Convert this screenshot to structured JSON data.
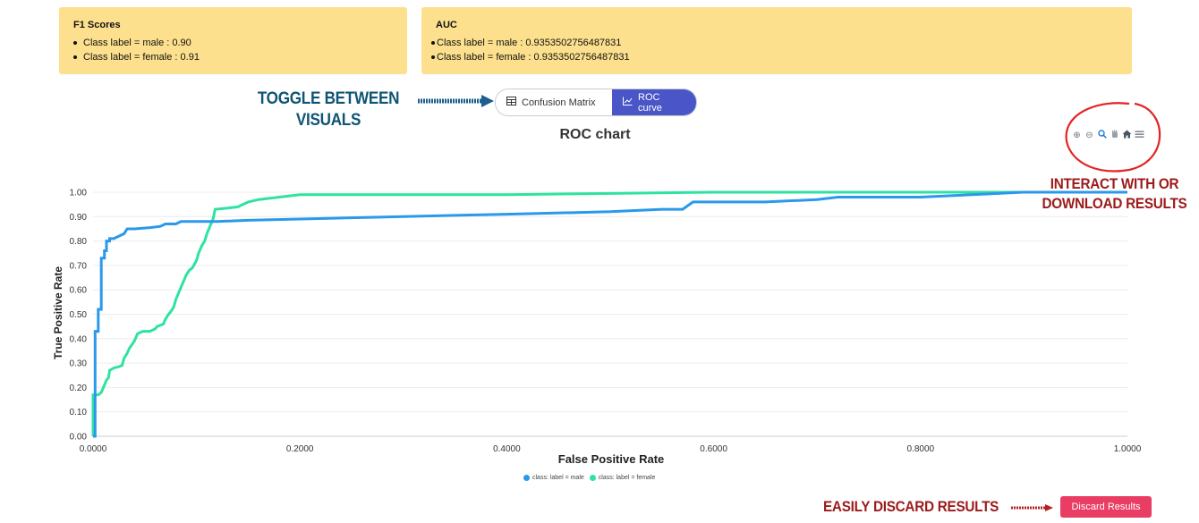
{
  "f1_card": {
    "title": "F1 Scores",
    "items": [
      "Class label = male : 0.90",
      "Class label = female : 0.91"
    ]
  },
  "auc_card": {
    "title": "AUC",
    "items": [
      "Class label = male : 0.9353502756487831",
      "Class label = female : 0.9353502756487831"
    ]
  },
  "annotations": {
    "toggle_line1": "TOGGLE BETWEEN",
    "toggle_line2": "VISUALS",
    "interact_line1": "INTERACT WITH OR",
    "interact_line2": "DOWNLOAD RESULTS",
    "discard": "EASILY DISCARD RESULTS"
  },
  "toggle": {
    "options": [
      {
        "label": "Confusion Matrix",
        "icon": "table-icon",
        "active": false
      },
      {
        "label": "ROC curve",
        "icon": "line-chart-icon",
        "active": true
      }
    ]
  },
  "toolbar": {
    "icons": [
      "zoom-in-icon",
      "zoom-out-icon",
      "magnifier-icon",
      "pan-hand-icon",
      "home-icon",
      "menu-icon"
    ]
  },
  "discard_button": "Discard Results",
  "colors": {
    "card_bg": "#fde08d",
    "male": "#2a99ea",
    "female": "#2ee3a0",
    "toggle_active": "#4a56c8",
    "discard": "#e93d64",
    "annot_red": "#9c1a1a",
    "annot_blue": "#0f5474"
  },
  "chart_data": {
    "type": "line",
    "title": "ROC chart",
    "xlabel": "False Positive Rate",
    "ylabel": "True Positive Rate",
    "xlim": [
      0,
      1
    ],
    "ylim": [
      0,
      1
    ],
    "x_ticks": [
      "0.0000",
      "0.2000",
      "0.4000",
      "0.6000",
      "0.8000",
      "1.0000"
    ],
    "y_ticks": [
      "0.00",
      "0.10",
      "0.20",
      "0.30",
      "0.40",
      "0.50",
      "0.60",
      "0.70",
      "0.80",
      "0.90",
      "1.00"
    ],
    "grid": true,
    "legend": "bottom",
    "series": [
      {
        "name": "class: label = male",
        "points": [
          [
            0,
            0
          ],
          [
            0.002,
            0
          ],
          [
            0.002,
            0.43
          ],
          [
            0.005,
            0.43
          ],
          [
            0.005,
            0.52
          ],
          [
            0.008,
            0.52
          ],
          [
            0.008,
            0.73
          ],
          [
            0.011,
            0.73
          ],
          [
            0.011,
            0.76
          ],
          [
            0.013,
            0.76
          ],
          [
            0.013,
            0.8
          ],
          [
            0.016,
            0.8
          ],
          [
            0.016,
            0.81
          ],
          [
            0.02,
            0.81
          ],
          [
            0.025,
            0.82
          ],
          [
            0.03,
            0.83
          ],
          [
            0.033,
            0.85
          ],
          [
            0.04,
            0.85
          ],
          [
            0.055,
            0.855
          ],
          [
            0.065,
            0.86
          ],
          [
            0.07,
            0.87
          ],
          [
            0.08,
            0.87
          ],
          [
            0.085,
            0.88
          ],
          [
            0.1,
            0.88
          ],
          [
            0.12,
            0.88
          ],
          [
            0.15,
            0.885
          ],
          [
            0.2,
            0.89
          ],
          [
            0.3,
            0.9
          ],
          [
            0.35,
            0.905
          ],
          [
            0.4,
            0.91
          ],
          [
            0.5,
            0.92
          ],
          [
            0.55,
            0.93
          ],
          [
            0.57,
            0.93
          ],
          [
            0.58,
            0.96
          ],
          [
            0.65,
            0.96
          ],
          [
            0.7,
            0.97
          ],
          [
            0.72,
            0.98
          ],
          [
            0.8,
            0.98
          ],
          [
            0.85,
            0.99
          ],
          [
            0.9,
            1.0
          ],
          [
            1.0,
            1.0
          ]
        ]
      },
      {
        "name": "class: label = female",
        "points": [
          [
            0,
            0
          ],
          [
            0,
            0.17
          ],
          [
            0.005,
            0.17
          ],
          [
            0.008,
            0.18
          ],
          [
            0.01,
            0.2
          ],
          [
            0.013,
            0.23
          ],
          [
            0.015,
            0.24
          ],
          [
            0.016,
            0.27
          ],
          [
            0.02,
            0.28
          ],
          [
            0.025,
            0.285
          ],
          [
            0.028,
            0.29
          ],
          [
            0.03,
            0.32
          ],
          [
            0.033,
            0.34
          ],
          [
            0.035,
            0.36
          ],
          [
            0.04,
            0.39
          ],
          [
            0.043,
            0.42
          ],
          [
            0.048,
            0.43
          ],
          [
            0.055,
            0.43
          ],
          [
            0.06,
            0.44
          ],
          [
            0.062,
            0.45
          ],
          [
            0.068,
            0.46
          ],
          [
            0.07,
            0.48
          ],
          [
            0.073,
            0.5
          ],
          [
            0.075,
            0.51
          ],
          [
            0.078,
            0.53
          ],
          [
            0.08,
            0.56
          ],
          [
            0.083,
            0.59
          ],
          [
            0.086,
            0.62
          ],
          [
            0.088,
            0.64
          ],
          [
            0.09,
            0.66
          ],
          [
            0.093,
            0.68
          ],
          [
            0.096,
            0.69
          ],
          [
            0.1,
            0.72
          ],
          [
            0.102,
            0.75
          ],
          [
            0.105,
            0.78
          ],
          [
            0.108,
            0.8
          ],
          [
            0.11,
            0.83
          ],
          [
            0.112,
            0.85
          ],
          [
            0.114,
            0.87
          ],
          [
            0.116,
            0.89
          ],
          [
            0.118,
            0.93
          ],
          [
            0.13,
            0.935
          ],
          [
            0.14,
            0.94
          ],
          [
            0.15,
            0.96
          ],
          [
            0.16,
            0.97
          ],
          [
            0.18,
            0.98
          ],
          [
            0.2,
            0.99
          ],
          [
            0.3,
            0.99
          ],
          [
            0.4,
            0.99
          ],
          [
            0.5,
            0.995
          ],
          [
            0.6,
            1.0
          ],
          [
            1.0,
            1.0
          ]
        ]
      }
    ]
  }
}
